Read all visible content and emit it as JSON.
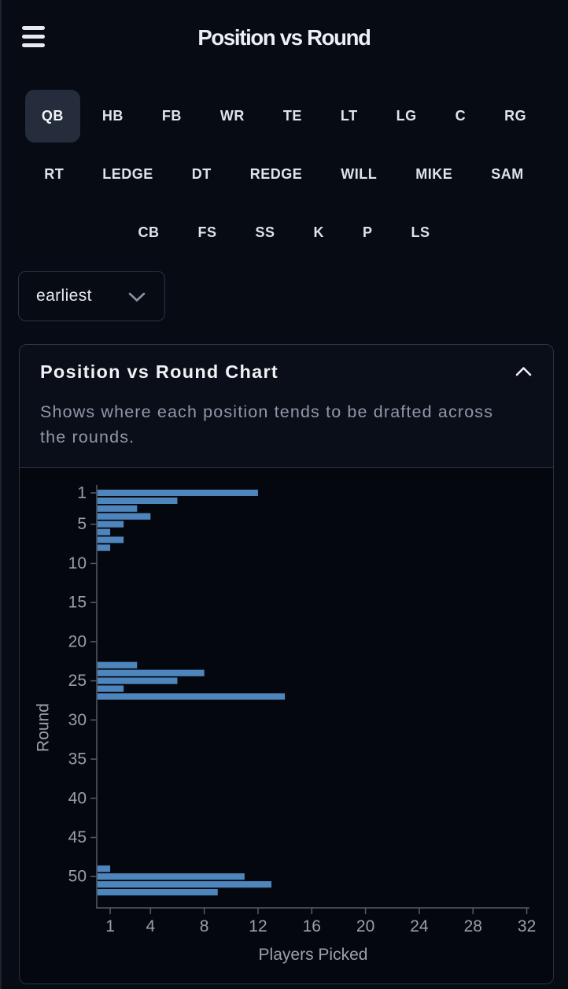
{
  "header": {
    "title": "Position vs Round"
  },
  "positions": {
    "selected": "QB",
    "rows": [
      [
        "QB",
        "HB",
        "FB",
        "WR",
        "TE",
        "LT",
        "LG",
        "C",
        "RG"
      ],
      [
        "RT",
        "LEDGE",
        "DT",
        "REDGE",
        "WILL",
        "MIKE",
        "SAM"
      ],
      [
        "CB",
        "FS",
        "SS",
        "K",
        "P",
        "LS"
      ]
    ]
  },
  "sort_dropdown": {
    "value": "earliest"
  },
  "card": {
    "title": "Position vs Round Chart",
    "description": "Shows where each position tends to be drafted across the rounds."
  },
  "chart_data": {
    "type": "bar",
    "orientation": "horizontal",
    "xlabel": "Players Picked",
    "ylabel": "Round",
    "xticks": [
      1,
      4,
      8,
      12,
      16,
      20,
      24,
      28,
      32
    ],
    "yticks": [
      1,
      5,
      10,
      15,
      20,
      25,
      30,
      35,
      40,
      45,
      50
    ],
    "xlim": [
      0,
      32.2
    ],
    "ylim": [
      0,
      54
    ],
    "grid": false,
    "legend": false,
    "bar_color": "#4e85bd",
    "points": [
      {
        "round": 1,
        "players_picked": 12
      },
      {
        "round": 2,
        "players_picked": 6
      },
      {
        "round": 3,
        "players_picked": 3
      },
      {
        "round": 4,
        "players_picked": 4
      },
      {
        "round": 5,
        "players_picked": 2
      },
      {
        "round": 6,
        "players_picked": 1
      },
      {
        "round": 7,
        "players_picked": 2
      },
      {
        "round": 8,
        "players_picked": 1
      },
      {
        "round": 23,
        "players_picked": 3
      },
      {
        "round": 24,
        "players_picked": 8
      },
      {
        "round": 25,
        "players_picked": 6
      },
      {
        "round": 26,
        "players_picked": 2
      },
      {
        "round": 27,
        "players_picked": 14
      },
      {
        "round": 49,
        "players_picked": 1
      },
      {
        "round": 50,
        "players_picked": 11
      },
      {
        "round": 51,
        "players_picked": 13
      },
      {
        "round": 52,
        "players_picked": 9
      }
    ]
  },
  "chart_style": {
    "axis_color": "#535b67",
    "tick_label_color": "#99a0ac",
    "axis_title_color": "#9aa1ad"
  }
}
